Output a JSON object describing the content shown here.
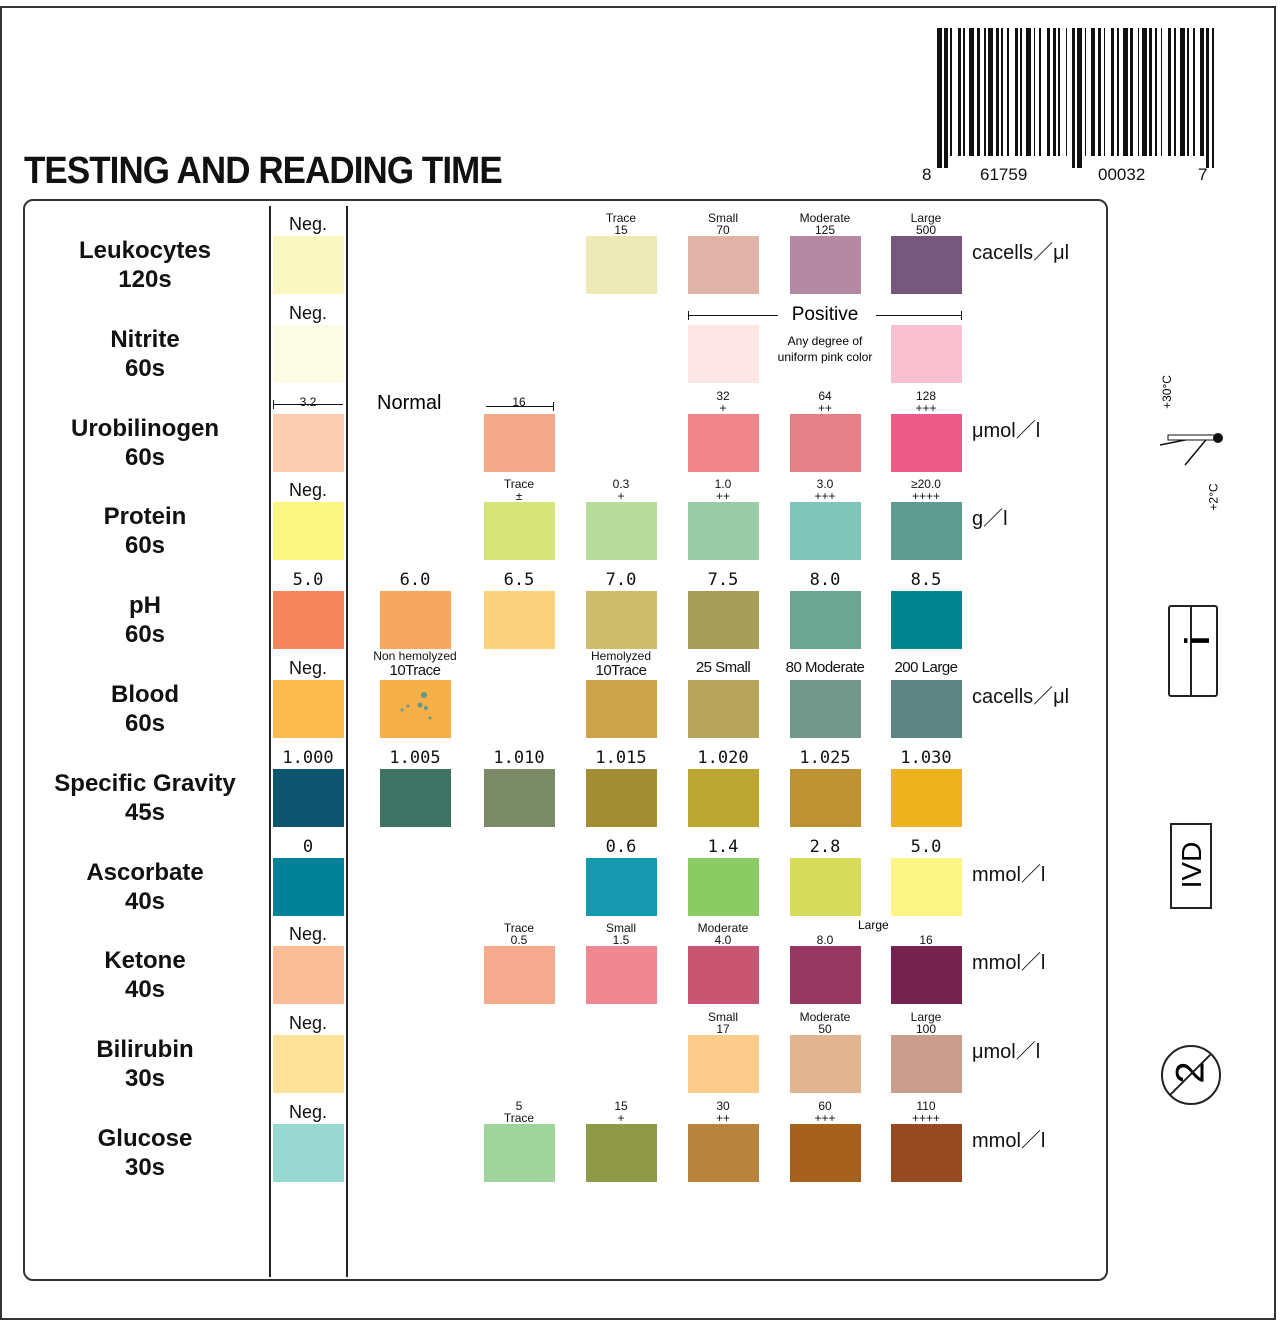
{
  "title": "TESTING AND READING TIME",
  "barcode": {
    "digits": [
      "8",
      "61759",
      "00032",
      "7"
    ]
  },
  "side_icons": {
    "thermometer": {
      "icon": "thermometer-icon",
      "upper": "+30°C",
      "lower": "+2°C"
    },
    "instructions": {
      "icon": "consult-instructions-book-icon",
      "glyph": "i"
    },
    "ivd": {
      "icon": "ivd-icon",
      "label": "IVD"
    },
    "single_use": {
      "icon": "do-not-reuse-icon",
      "glyph": "2"
    }
  },
  "nitrite_positive": {
    "label": "Positive",
    "note_line1": "Any degree of",
    "note_line2": "uniform pink color"
  },
  "urobilinogen_normal": "Normal",
  "ketone_large": "Large",
  "rows": [
    {
      "name": "Leukocytes",
      "time": "120s",
      "unit": "cacells／μl",
      "cells": [
        {
          "top": "Neg.",
          "color": "#f8f8c0"
        },
        null,
        null,
        {
          "top": "Trace",
          "bottom": "15",
          "color": "#eeeab8"
        },
        {
          "top": "Small",
          "bottom": "70",
          "color": "#dfb3a5"
        },
        {
          "top": "Moderate",
          "bottom": "125",
          "color": "#b38aa1"
        },
        {
          "top": "Large",
          "bottom": "500",
          "color": "#77587d"
        }
      ]
    },
    {
      "name": "Nitrite",
      "time": "60s",
      "unit": "",
      "cells": [
        {
          "top": "Neg.",
          "color": "#fcfce6"
        },
        null,
        null,
        null,
        {
          "color": "#fde6e6"
        },
        null,
        {
          "color": "#f8c0d0"
        }
      ]
    },
    {
      "name": "Urobilinogen",
      "time": "60s",
      "unit": "μmol／l",
      "cells": [
        {
          "top": "3.2",
          "color": "#fccdb0"
        },
        null,
        {
          "top": "16",
          "color": "#f3a98c"
        },
        null,
        {
          "top": "32",
          "bottom": "+",
          "color": "#ef858b"
        },
        {
          "top": "64",
          "bottom": "++",
          "color": "#e57f88"
        },
        {
          "top": "128",
          "bottom": "+++",
          "color": "#ec5a88"
        }
      ]
    },
    {
      "name": "Protein",
      "time": "60s",
      "unit": "g／l",
      "cells": [
        {
          "top": "Neg.",
          "color": "#fbf780"
        },
        null,
        {
          "top": "Trace",
          "bottom": "±",
          "color": "#d5e57a"
        },
        {
          "top": "0.3",
          "bottom": "+",
          "color": "#b8dc9c"
        },
        {
          "top": "1.0",
          "bottom": "++",
          "color": "#9ccbaa"
        },
        {
          "top": "3.0",
          "bottom": "+++",
          "color": "#80c5b8"
        },
        {
          "top": "≥20.0",
          "bottom": "++++",
          "color": "#5f9a8f"
        }
      ]
    },
    {
      "name": "pH",
      "time": "60s",
      "unit": "",
      "cells": [
        {
          "top": "5.0",
          "color": "#f5855b"
        },
        {
          "top": "6.0",
          "color": "#f7a85e"
        },
        {
          "top": "6.5",
          "color": "#fcd27c"
        },
        {
          "top": "7.0",
          "color": "#cfbc6c"
        },
        {
          "top": "7.5",
          "color": "#a59e58"
        },
        {
          "top": "8.0",
          "color": "#6aa692"
        },
        {
          "top": "8.5",
          "color": "#00868f"
        }
      ]
    },
    {
      "name": "Blood",
      "time": "60s",
      "unit": "cacells／μl",
      "cells": [
        {
          "top": "Neg.",
          "color": "#fcbb4c"
        },
        {
          "top": "Non hemolyzed",
          "bottom": "10Trace",
          "color": "#f7b048"
        },
        null,
        {
          "top": "Hemolyzed",
          "bottom": "10Trace",
          "color": "#cca24a"
        },
        {
          "top": "25 Small",
          "color": "#b8a55c"
        },
        {
          "top": "80 Moderate",
          "color": "#74998c"
        },
        {
          "top": "200 Large",
          "color": "#5b8483"
        }
      ]
    },
    {
      "name": "Specific Gravity",
      "time": "45s",
      "unit": "",
      "cells": [
        {
          "top": "1.000",
          "color": "#0e5670"
        },
        {
          "top": "1.005",
          "color": "#3f7465"
        },
        {
          "top": "1.010",
          "color": "#7b8a66"
        },
        {
          "top": "1.015",
          "color": "#a48e34"
        },
        {
          "top": "1.020",
          "color": "#bba632"
        },
        {
          "top": "1.025",
          "color": "#bc9233"
        },
        {
          "top": "1.030",
          "color": "#eeb31c"
        }
      ]
    },
    {
      "name": "Ascorbate",
      "time": "40s",
      "unit": "mmol／l",
      "cells": [
        {
          "top": "0",
          "color": "#00819a"
        },
        null,
        null,
        {
          "top": "0.6",
          "color": "#1499ae"
        },
        {
          "top": "1.4",
          "color": "#8ccb64"
        },
        {
          "top": "2.8",
          "color": "#d5dc5c"
        },
        {
          "top": "5.0",
          "color": "#fcf686"
        }
      ]
    },
    {
      "name": "Ketone",
      "time": "40s",
      "unit": "mmol／l",
      "cells": [
        {
          "top": "Neg.",
          "color": "#fbbd98"
        },
        null,
        {
          "top": "Trace",
          "bottom": "0.5",
          "color": "#f4aa8e"
        },
        {
          "top": "Small",
          "bottom": "1.5",
          "color": "#ef8791"
        },
        {
          "top": "Moderate",
          "bottom": "4.0",
          "color": "#c85673"
        },
        {
          "bottom": "8.0",
          "color": "#96385f"
        },
        {
          "bottom": "16",
          "color": "#74244f"
        }
      ]
    },
    {
      "name": "Bilirubin",
      "time": "30s",
      "unit": "μmol／l",
      "cells": [
        {
          "top": "Neg.",
          "color": "#fde298"
        },
        null,
        null,
        null,
        {
          "top": "Small",
          "bottom": "17",
          "color": "#fbcc8c"
        },
        {
          "top": "Moderate",
          "bottom": "50",
          "color": "#e2b492"
        },
        {
          "top": "Large",
          "bottom": "100",
          "color": "#c99e8c"
        }
      ]
    },
    {
      "name": "Glucose",
      "time": "30s",
      "unit": "mmol／l",
      "cells": [
        {
          "top": "Neg.",
          "color": "#97d9d0"
        },
        null,
        {
          "top": "5",
          "bottom": "Trace",
          "color": "#9fd49c"
        },
        {
          "top": "15",
          "bottom": "+",
          "color": "#8e9a48"
        },
        {
          "top": "30",
          "bottom": "++",
          "color": "#b7833d"
        },
        {
          "top": "60",
          "bottom": "+++",
          "color": "#a6621c"
        },
        {
          "top": "110",
          "bottom": "++++",
          "color": "#974922"
        }
      ]
    }
  ]
}
